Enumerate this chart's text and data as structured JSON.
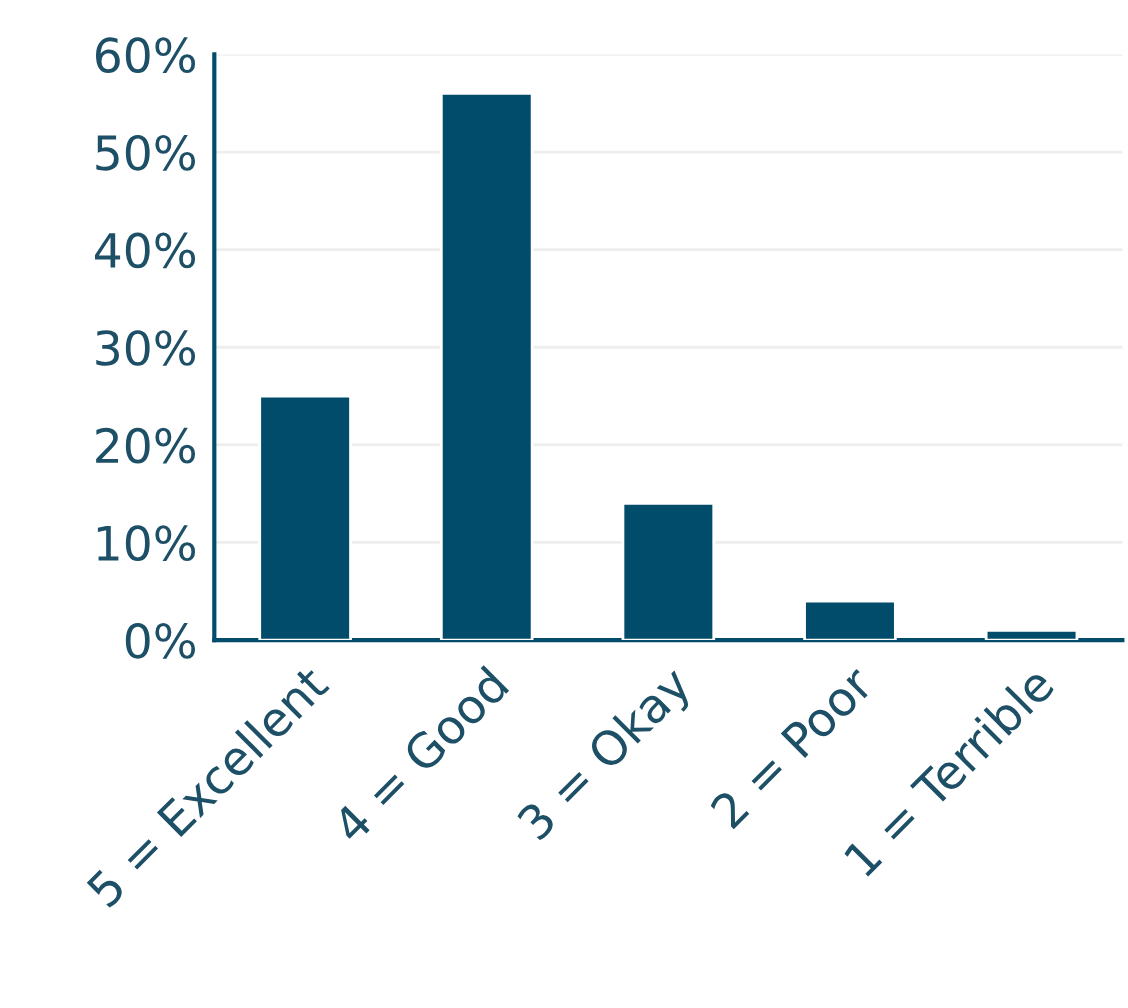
{
  "chart_data": {
    "type": "bar",
    "categories": [
      "5 = Excellent",
      "4 = Good",
      "3 = Okay",
      "2 = Poor",
      "1 = Terrible"
    ],
    "values": [
      25,
      56,
      14,
      4,
      1
    ],
    "color": "#004c6a",
    "ylim": [
      0,
      60
    ],
    "yticks": [
      {
        "value": 0,
        "label": "0%"
      },
      {
        "value": 10,
        "label": "10%"
      },
      {
        "value": 20,
        "label": "20%"
      },
      {
        "value": 30,
        "label": "30%"
      },
      {
        "value": 40,
        "label": "40%"
      },
      {
        "value": 50,
        "label": "50%"
      },
      {
        "value": 60,
        "label": "60%"
      }
    ],
    "grid": "y"
  }
}
